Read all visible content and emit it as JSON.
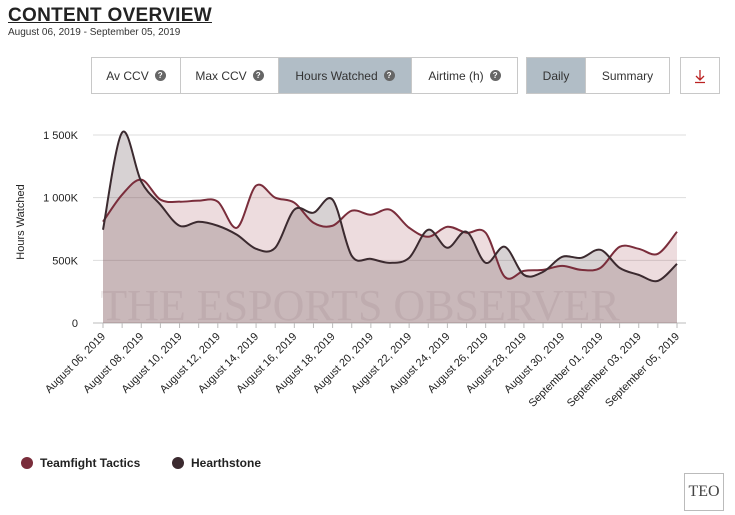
{
  "header": {
    "title": "CONTENT OVERVIEW",
    "subtitle": "August 06, 2019 - September 05, 2019"
  },
  "tabs": [
    {
      "label": "Av CCV",
      "active": false
    },
    {
      "label": "Max CCV",
      "active": false
    },
    {
      "label": "Hours Watched",
      "active": true
    },
    {
      "label": "Airtime (h)",
      "active": false
    }
  ],
  "views": [
    {
      "label": "Daily",
      "active": true
    },
    {
      "label": "Summary",
      "active": false
    }
  ],
  "watermark": "THE ESPORTS OBSERVER",
  "logo": "TEO",
  "chart_data": {
    "type": "area",
    "ylabel": "Hours Watched",
    "categories": [
      "August 06, 2019",
      null,
      "August 08, 2019",
      null,
      "August 10, 2019",
      null,
      "August 12, 2019",
      null,
      "August 14, 2019",
      null,
      "August 16, 2019",
      null,
      "August 18, 2019",
      null,
      "August 20, 2019",
      null,
      "August 22, 2019",
      null,
      "August 24, 2019",
      null,
      "August 26, 2019",
      null,
      "August 28, 2019",
      null,
      "August 30, 2019",
      null,
      "September 01, 2019",
      null,
      "September 03, 2019",
      null,
      "September 05, 2019"
    ],
    "series": [
      {
        "name": "Teamfight Tactics",
        "color": "#7a2d3b",
        "fill": "rgba(175,95,105,0.22)",
        "values": [
          808000,
          1024000,
          1144000,
          984000,
          968000,
          976000,
          968000,
          760000,
          1096000,
          1000000,
          960000,
          800000,
          776000,
          896000,
          864000,
          904000,
          760000,
          688000,
          768000,
          720000,
          720000,
          368000,
          416000,
          424000,
          456000,
          424000,
          440000,
          608000,
          592000,
          552000,
          728000
        ]
      },
      {
        "name": "Hearthstone",
        "color": "#3b2a2f",
        "fill": "rgba(95,75,80,0.25)",
        "values": [
          744000,
          1520000,
          1128000,
          944000,
          776000,
          808000,
          776000,
          704000,
          592000,
          600000,
          904000,
          880000,
          984000,
          536000,
          512000,
          480000,
          520000,
          744000,
          600000,
          728000,
          480000,
          608000,
          384000,
          408000,
          528000,
          520000,
          584000,
          440000,
          384000,
          336000,
          472000
        ]
      }
    ],
    "ylim": [
      0,
      1500000
    ],
    "yticks": [
      {
        "value": 0,
        "label": "0"
      },
      {
        "value": 500000,
        "label": "500K"
      },
      {
        "value": 1000000,
        "label": "1 000K"
      },
      {
        "value": 1500000,
        "label": "1 500K"
      }
    ],
    "grid": true
  }
}
